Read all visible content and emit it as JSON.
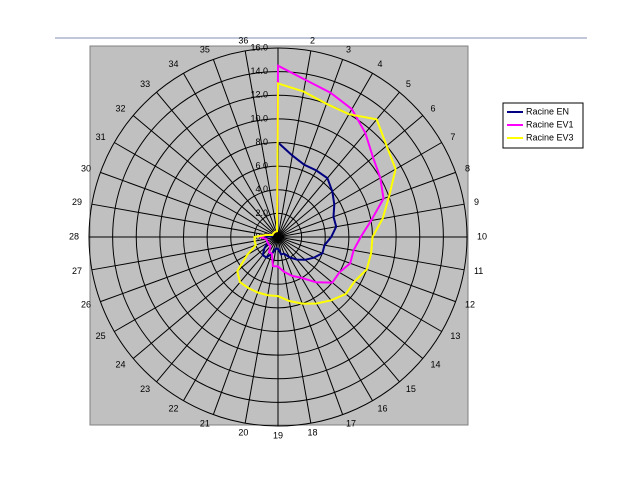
{
  "chart_data": {
    "type": "radar",
    "categories": [
      null,
      "2",
      "3",
      "4",
      "5",
      "6",
      "7",
      "8",
      "9",
      "10",
      "11",
      "12",
      "13",
      "14",
      "15",
      "16",
      "17",
      "18",
      "19",
      "20",
      "21",
      "22",
      "23",
      "24",
      "25",
      "26",
      "27",
      "28",
      "29",
      "30",
      "31",
      "32",
      "33",
      "34",
      "35",
      "36"
    ],
    "series": [
      {
        "name": "Racine EN",
        "color": "#000080",
        "values": [
          8,
          7,
          6.5,
          6.5,
          6.5,
          6,
          5.5,
          5,
          5,
          4.5,
          4,
          4,
          3.5,
          3,
          2.5,
          2,
          1.5,
          1.5,
          1,
          1,
          1.5,
          2,
          2,
          1.5,
          1,
          1,
          1,
          1,
          0.5,
          0.5,
          0.5,
          0.5,
          0.5,
          0.5,
          0.5,
          0.5
        ]
      },
      {
        "name": "Racine EV1",
        "color": "#ff00ff",
        "values": [
          14.5,
          13.5,
          13,
          12.5,
          11.5,
          10.5,
          10,
          9.5,
          8,
          7,
          6.5,
          6.5,
          6,
          6,
          5,
          4,
          3.5,
          3,
          2.5,
          2.5,
          1.5,
          1.5,
          1,
          1,
          1,
          1,
          1,
          1.5,
          1,
          0.5,
          0.5,
          0.5,
          0.5,
          0.5,
          0.5,
          0.5
        ]
      },
      {
        "name": "Racine EV3",
        "color": "#ffff00",
        "values": [
          13,
          12.5,
          12,
          12,
          13,
          12,
          11.5,
          10,
          9,
          8,
          8,
          8,
          7.5,
          7.5,
          7,
          6.5,
          6,
          5.5,
          5,
          5,
          5,
          5,
          5,
          4.5,
          3,
          2,
          2,
          2,
          1,
          0.5,
          0.5,
          0.5,
          0.5,
          0.5,
          0.5,
          0.5
        ]
      }
    ],
    "ylim": [
      0,
      16
    ],
    "yticks": [
      {
        "value": 0,
        "label": "0.0"
      },
      {
        "value": 2,
        "label": "2.0"
      },
      {
        "value": 4,
        "label": "4.0"
      },
      {
        "value": 6,
        "label": "6.0"
      },
      {
        "value": 8,
        "label": "8.0"
      },
      {
        "value": 10,
        "label": "10.0"
      },
      {
        "value": 12,
        "label": "12.0"
      },
      {
        "value": 14,
        "label": "14.0"
      },
      {
        "value": 16,
        "label": "16.0"
      }
    ],
    "grid": true,
    "legend": "right"
  }
}
